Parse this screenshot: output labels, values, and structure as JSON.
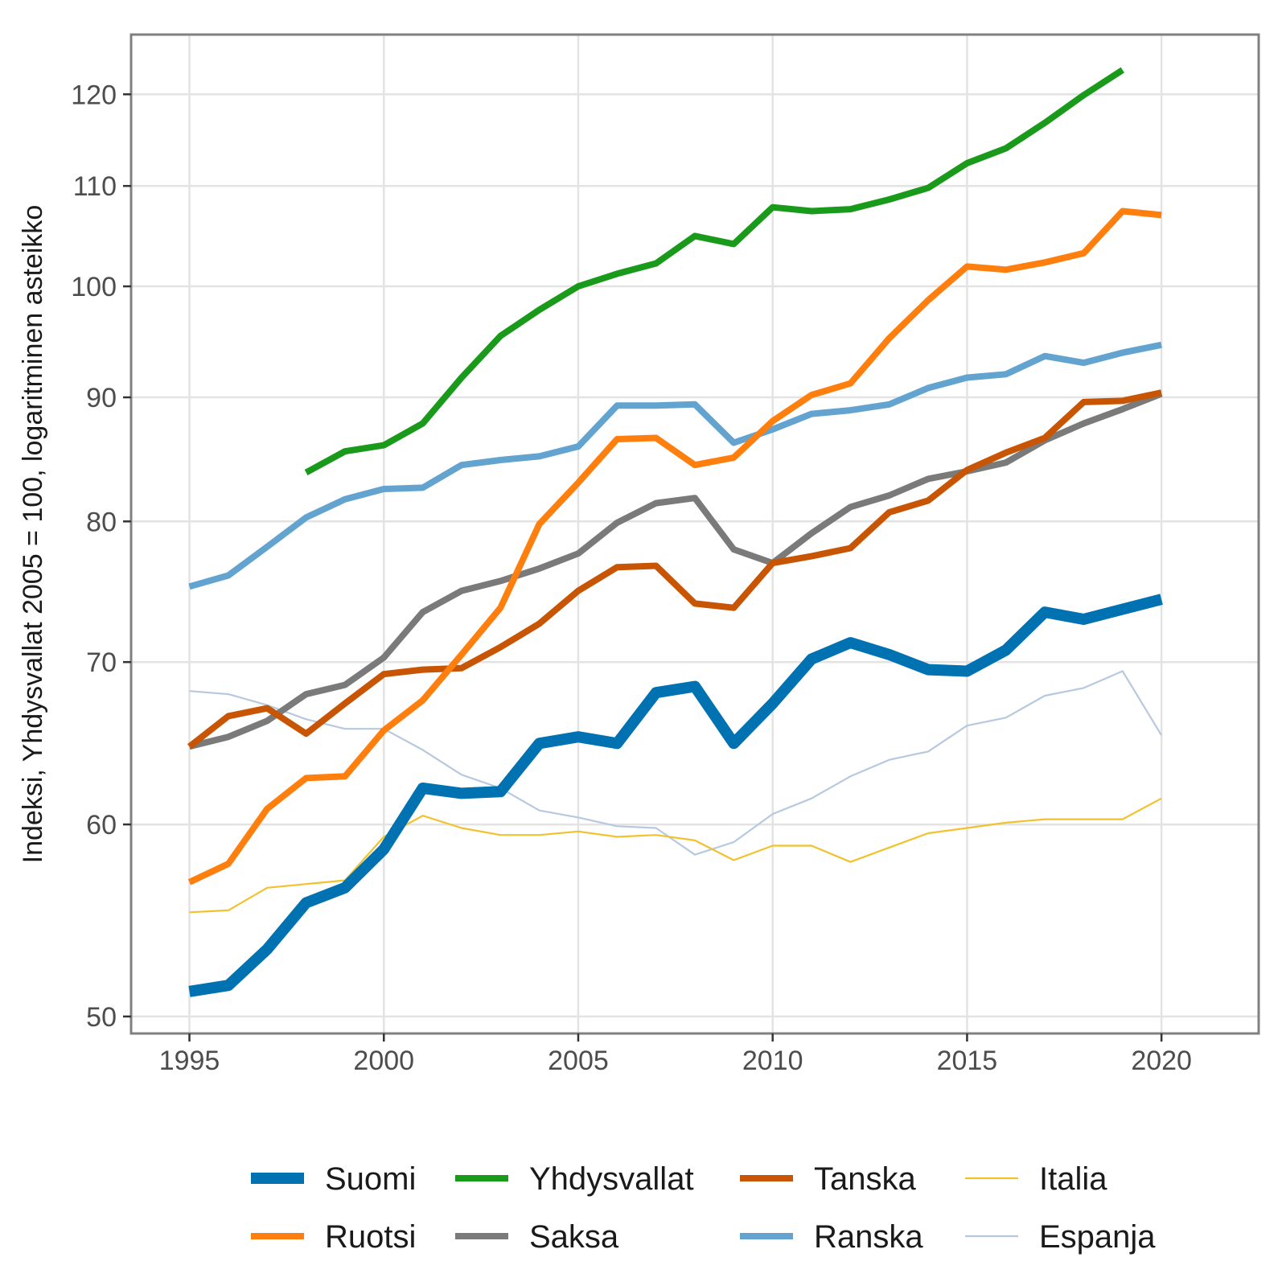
{
  "chart_data": {
    "type": "line",
    "ylabel": "Indeksi, Yhdysvallat 2005 = 100, logaritminen asteikko",
    "xlabel": "",
    "y_scale": "log",
    "xlim": [
      1993.5,
      2022.5
    ],
    "ylim": [
      49.2,
      127
    ],
    "x_ticks": [
      1995,
      2000,
      2005,
      2010,
      2015,
      2020
    ],
    "x_tick_labels": [
      "1995",
      "2000",
      "2005",
      "2010",
      "2015",
      "2020"
    ],
    "y_ticks": [
      50,
      60,
      70,
      80,
      90,
      100,
      110,
      120
    ],
    "y_tick_labels": [
      "50",
      "60",
      "70",
      "80",
      "90",
      "100",
      "110",
      "120"
    ],
    "grid": true,
    "legend_position": "bottom",
    "years": [
      1995,
      1996,
      1997,
      1998,
      1999,
      2000,
      2001,
      2002,
      2003,
      2004,
      2005,
      2006,
      2007,
      2008,
      2009,
      2010,
      2011,
      2012,
      2013,
      2014,
      2015,
      2016,
      2017,
      2018,
      2019,
      2020
    ],
    "series": [
      {
        "name": "Suomi",
        "color": "#0072b2",
        "weight": "thick",
        "values": [
          51.2,
          51.5,
          53.3,
          55.7,
          56.5,
          58.6,
          62.1,
          61.8,
          61.9,
          64.8,
          65.2,
          64.8,
          68.0,
          68.4,
          64.8,
          67.3,
          70.2,
          71.3,
          70.5,
          69.5,
          69.4,
          70.8,
          73.4,
          72.9,
          73.6,
          74.3
        ]
      },
      {
        "name": "Ruotsi",
        "color": "#ff7f0e",
        "weight": "medium",
        "values": [
          56.8,
          57.8,
          60.9,
          62.7,
          62.8,
          65.6,
          67.5,
          70.5,
          73.7,
          79.8,
          83.0,
          86.5,
          86.6,
          84.4,
          85.0,
          88.0,
          90.2,
          91.2,
          95.2,
          98.7,
          101.9,
          101.6,
          102.3,
          103.2,
          107.4,
          107.0
        ]
      },
      {
        "name": "Yhdysvallat",
        "color": "#1a9a1a",
        "weight": "medium",
        "values": [
          null,
          null,
          null,
          83.8,
          85.5,
          86.0,
          87.8,
          91.7,
          95.4,
          97.8,
          100.0,
          101.2,
          102.2,
          104.9,
          104.1,
          107.8,
          107.4,
          107.6,
          108.6,
          109.8,
          112.4,
          114.0,
          116.8,
          119.9,
          122.8,
          null
        ]
      },
      {
        "name": "Saksa",
        "color": "#7a7a7a",
        "weight": "medium",
        "values": [
          64.6,
          65.2,
          66.2,
          67.9,
          68.5,
          70.3,
          73.4,
          74.9,
          75.6,
          76.5,
          77.6,
          79.9,
          81.4,
          81.8,
          77.9,
          76.9,
          79.1,
          81.1,
          82.0,
          83.3,
          83.9,
          84.6,
          86.4,
          87.8,
          89.0,
          90.3
        ]
      },
      {
        "name": "Tanska",
        "color": "#c85504",
        "weight": "medium",
        "values": [
          64.6,
          66.5,
          67.0,
          65.4,
          67.3,
          69.2,
          69.5,
          69.6,
          71.0,
          72.6,
          74.9,
          76.6,
          76.7,
          74.0,
          73.7,
          76.9,
          77.4,
          78.0,
          80.7,
          81.6,
          84.0,
          85.4,
          86.6,
          89.6,
          89.7,
          90.4
        ]
      },
      {
        "name": "Ranska",
        "color": "#62a3d0",
        "weight": "medium",
        "values": [
          75.2,
          76.0,
          78.1,
          80.3,
          81.7,
          82.5,
          82.6,
          84.4,
          84.8,
          85.1,
          85.9,
          89.3,
          89.3,
          89.4,
          86.2,
          87.3,
          88.6,
          88.9,
          89.4,
          90.8,
          91.7,
          92.0,
          93.6,
          93.0,
          93.9,
          94.6
        ]
      },
      {
        "name": "Italia",
        "color": "#f2c12e",
        "weight": "thin",
        "values": [
          55.2,
          55.3,
          56.5,
          56.7,
          56.9,
          59.3,
          60.5,
          59.8,
          59.4,
          59.4,
          59.6,
          59.3,
          59.4,
          59.1,
          58.0,
          58.8,
          58.8,
          57.9,
          58.7,
          59.5,
          59.8,
          60.1,
          60.3,
          60.3,
          60.3,
          61.5
        ]
      },
      {
        "name": "Espanja",
        "color": "#b6c9df",
        "weight": "thin",
        "values": [
          68.1,
          67.9,
          67.2,
          66.3,
          65.7,
          65.7,
          64.4,
          62.9,
          62.1,
          60.8,
          60.4,
          59.9,
          59.8,
          58.3,
          59.0,
          60.6,
          61.5,
          62.8,
          63.8,
          64.3,
          65.9,
          66.4,
          67.8,
          68.3,
          69.4,
          65.3
        ]
      }
    ]
  }
}
